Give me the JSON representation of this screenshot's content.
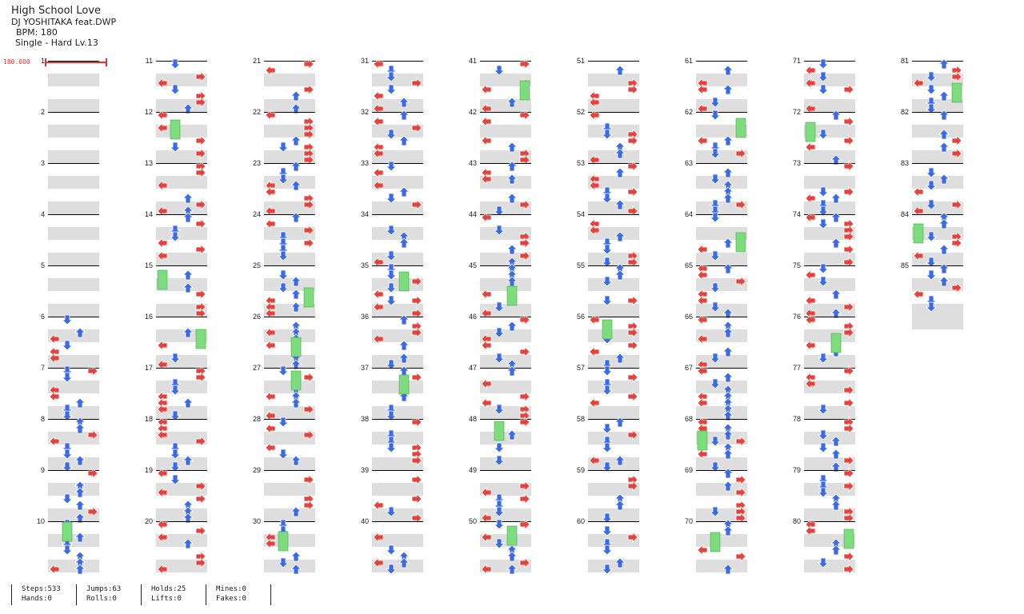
{
  "song": {
    "title": "High School Love",
    "artist": "DJ YOSHITAKA feat.DWP",
    "bpm": "BPM: 180",
    "difficulty": "Single - Hard  Lv.13"
  },
  "bpm_change": {
    "label": "180.000",
    "color": "#e03333"
  },
  "colors": {
    "left_right": "#e8403a",
    "up_down": "#3a6ae8",
    "hold": "#7ddc7d",
    "mine": "#f0e030",
    "shade": "#dedede"
  },
  "measures": [
    "1",
    "2",
    "3",
    "4",
    "5",
    "6",
    "7",
    "8",
    "9",
    "10",
    "11",
    "12",
    "13",
    "14",
    "15",
    "16",
    "17",
    "18",
    "19",
    "20",
    "21",
    "22",
    "23",
    "24",
    "25",
    "26",
    "27",
    "28",
    "29",
    "30",
    "31",
    "32",
    "33",
    "34",
    "35",
    "36",
    "37",
    "38",
    "39",
    "40",
    "41",
    "42",
    "43",
    "44",
    "45",
    "46",
    "47",
    "48",
    "49",
    "50",
    "51",
    "52",
    "53",
    "54",
    "55",
    "56",
    "57",
    "58",
    "59",
    "60",
    "61",
    "62",
    "63",
    "64",
    "65",
    "66",
    "67",
    "68",
    "69",
    "70",
    "71",
    "72",
    "73",
    "74",
    "75",
    "76",
    "77",
    "78",
    "79",
    "80",
    "81",
    "82",
    "83",
    "84",
    "85"
  ],
  "stats": {
    "steps": "Steps:533",
    "hands": "Hands:0",
    "jumps": "Jumps:63",
    "rolls": "Rolls:0",
    "holds": "Holds:25",
    "lifts": "Lifts:0",
    "mines": "Mines:0",
    "fakes": "Fakes:0"
  }
}
